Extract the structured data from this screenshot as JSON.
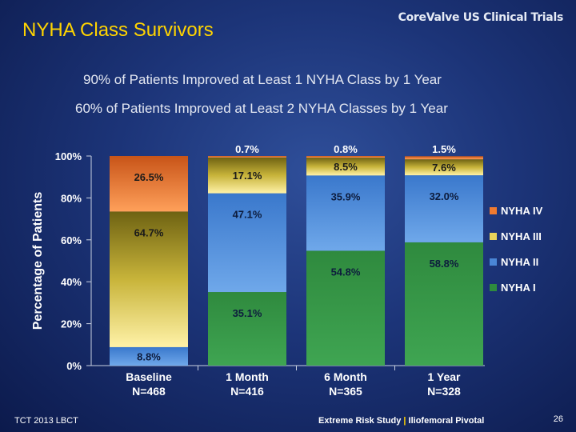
{
  "slide": {
    "title": "NYHA Class Survivors",
    "brand": "CoreValve US Clinical Trials",
    "headline_1": "90% of Patients Improved at Least 1 NYHA Class by 1 Year",
    "headline_2": "60% of Patients Improved at Least 2 NYHA Classes by 1 Year",
    "footer_left": "TCT 2013 LBCT",
    "footer_right_a": "Extreme Risk Study",
    "footer_sep": "|",
    "footer_right_b": "Iliofemoral Pivotal",
    "page_number": "26"
  },
  "chart_data": {
    "type": "bar",
    "stacked": true,
    "title": "",
    "xlabel": "",
    "ylabel": "Percentage of Patients",
    "ylim": [
      0,
      100
    ],
    "yticks": [
      "0%",
      "20%",
      "40%",
      "60%",
      "80%",
      "100%"
    ],
    "grid": false,
    "legend": "right",
    "categories": [
      {
        "line1": "Baseline",
        "line2": "N=468"
      },
      {
        "line1": "1 Month",
        "line2": "N=416"
      },
      {
        "line1": "6 Month",
        "line2": "N=365"
      },
      {
        "line1": "1 Year",
        "line2": "N=328"
      }
    ],
    "series": [
      {
        "name": "NYHA I",
        "color": "#2e8b3e",
        "values": [
          0,
          35.1,
          54.8,
          58.8
        ],
        "labels": [
          "",
          "35.1%",
          "54.8%",
          "58.8%"
        ]
      },
      {
        "name": "NYHA II",
        "color": "#4a86d6",
        "values": [
          8.8,
          47.1,
          35.9,
          32.0
        ],
        "labels": [
          "8.8%",
          "47.1%",
          "35.9%",
          "32.0%"
        ]
      },
      {
        "name": "NYHA III",
        "color": "#e8d45a",
        "values": [
          64.7,
          17.1,
          8.5,
          7.6
        ],
        "labels": [
          "64.7%",
          "17.1%",
          "8.5%",
          "7.6%"
        ]
      },
      {
        "name": "NYHA IV",
        "color": "#f07a30",
        "values": [
          26.5,
          0.7,
          0.8,
          1.5
        ],
        "labels": [
          "26.5%",
          "0.7%",
          "0.8%",
          "1.5%"
        ]
      }
    ]
  }
}
